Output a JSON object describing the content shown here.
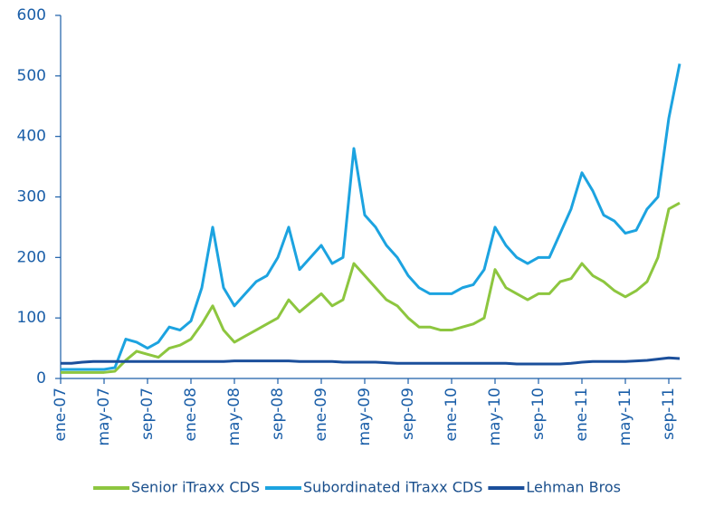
{
  "chart_data": {
    "type": "line",
    "categories": [
      "ene-07",
      null,
      null,
      null,
      "may-07",
      null,
      null,
      null,
      "sep-07",
      null,
      null,
      null,
      "ene-08",
      null,
      null,
      null,
      "may-08",
      null,
      null,
      null,
      "sep-08",
      null,
      null,
      null,
      "ene-09",
      null,
      null,
      null,
      "may-09",
      null,
      null,
      null,
      "sep-09",
      null,
      null,
      null,
      "ene-10",
      null,
      null,
      null,
      "may-10",
      null,
      null,
      null,
      "sep-10",
      null,
      null,
      null,
      "ene-11",
      null,
      null,
      null,
      "may-11",
      null,
      null,
      null,
      "sep-11",
      null
    ],
    "series": [
      {
        "name": "Senior iTraxx CDS",
        "color": "#8dc63f",
        "values": [
          10,
          10,
          10,
          10,
          10,
          12,
          30,
          45,
          40,
          35,
          50,
          55,
          65,
          90,
          120,
          80,
          60,
          70,
          80,
          90,
          100,
          130,
          110,
          125,
          140,
          120,
          130,
          190,
          170,
          150,
          130,
          120,
          100,
          85,
          85,
          80,
          80,
          85,
          90,
          100,
          180,
          150,
          140,
          130,
          140,
          140,
          160,
          165,
          190,
          170,
          160,
          145,
          135,
          145,
          160,
          200,
          280,
          290
        ]
      },
      {
        "name": "Subordinated iTraxx CDS",
        "color": "#1ca3e0",
        "values": [
          15,
          15,
          15,
          15,
          15,
          18,
          65,
          60,
          50,
          60,
          85,
          80,
          95,
          150,
          250,
          150,
          120,
          140,
          160,
          170,
          200,
          250,
          180,
          200,
          220,
          190,
          200,
          380,
          270,
          250,
          220,
          200,
          170,
          150,
          140,
          140,
          140,
          150,
          155,
          180,
          250,
          220,
          200,
          190,
          200,
          200,
          240,
          280,
          340,
          310,
          270,
          260,
          240,
          245,
          280,
          300,
          430,
          520
        ]
      },
      {
        "name": "Lehman Bros",
        "color": "#1b4f9b",
        "values": [
          25,
          25,
          27,
          28,
          28,
          28,
          28,
          28,
          28,
          28,
          28,
          28,
          28,
          28,
          28,
          28,
          29,
          29,
          29,
          29,
          29,
          29,
          28,
          28,
          28,
          28,
          27,
          27,
          27,
          27,
          26,
          25,
          25,
          25,
          25,
          25,
          25,
          25,
          25,
          25,
          25,
          25,
          24,
          24,
          24,
          24,
          24,
          25,
          27,
          28,
          28,
          28,
          28,
          29,
          30,
          32,
          34,
          33
        ]
      }
    ],
    "ylim": [
      0,
      600
    ],
    "yticks": [
      0,
      100,
      200,
      300,
      400,
      500,
      600
    ],
    "legend": "bottom"
  }
}
